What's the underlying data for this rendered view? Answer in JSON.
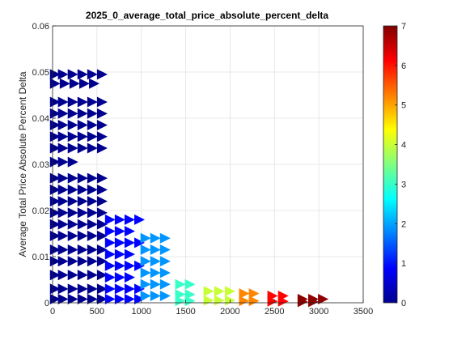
{
  "chart_data": {
    "type": "scatter",
    "title": "2025_0_average_total_price_absolute_percent_delta",
    "xlabel": "",
    "ylabel": "Average Total Price Absolute Percent Delta",
    "xlim": [
      0,
      3500
    ],
    "ylim": [
      0,
      0.06
    ],
    "xticks": [
      0,
      500,
      1000,
      1500,
      2000,
      2500,
      3000,
      3500
    ],
    "yticks": [
      0,
      0.01,
      0.02,
      0.03,
      0.04,
      0.05,
      0.06
    ],
    "ytick_labels": [
      "0",
      "0.01",
      "0.02",
      "0.03",
      "0.04",
      "0.05",
      "0.06"
    ],
    "grid": true,
    "colormap": "jet",
    "color_limits": [
      0,
      7
    ],
    "colorbar_ticks": [
      0,
      1,
      2,
      3,
      4,
      5,
      6,
      7
    ],
    "marker": "triangle",
    "description_of_color": "marker color encodes a third variable via the colorbar",
    "points": [
      {
        "x": 30,
        "y": 0.0495,
        "c": 0.1
      },
      {
        "x": 120,
        "y": 0.0495,
        "c": 0.1
      },
      {
        "x": 230,
        "y": 0.0495,
        "c": 0.1
      },
      {
        "x": 340,
        "y": 0.0495,
        "c": 0.1
      },
      {
        "x": 450,
        "y": 0.0495,
        "c": 0.1
      },
      {
        "x": 560,
        "y": 0.0495,
        "c": 0.1
      },
      {
        "x": 30,
        "y": 0.0475,
        "c": 0.1
      },
      {
        "x": 140,
        "y": 0.0475,
        "c": 0.1
      },
      {
        "x": 250,
        "y": 0.0475,
        "c": 0.1
      },
      {
        "x": 360,
        "y": 0.0475,
        "c": 0.1
      },
      {
        "x": 470,
        "y": 0.0475,
        "c": 0.1
      },
      {
        "x": 30,
        "y": 0.0435,
        "c": 0.1
      },
      {
        "x": 120,
        "y": 0.0435,
        "c": 0.1
      },
      {
        "x": 230,
        "y": 0.0435,
        "c": 0.1
      },
      {
        "x": 340,
        "y": 0.0435,
        "c": 0.1
      },
      {
        "x": 450,
        "y": 0.0435,
        "c": 0.1
      },
      {
        "x": 560,
        "y": 0.0435,
        "c": 0.1
      },
      {
        "x": 30,
        "y": 0.041,
        "c": 0.1
      },
      {
        "x": 120,
        "y": 0.041,
        "c": 0.1
      },
      {
        "x": 230,
        "y": 0.041,
        "c": 0.1
      },
      {
        "x": 340,
        "y": 0.041,
        "c": 0.1
      },
      {
        "x": 450,
        "y": 0.041,
        "c": 0.1
      },
      {
        "x": 560,
        "y": 0.041,
        "c": 0.1
      },
      {
        "x": 30,
        "y": 0.0385,
        "c": 0.1
      },
      {
        "x": 120,
        "y": 0.0385,
        "c": 0.1
      },
      {
        "x": 230,
        "y": 0.0385,
        "c": 0.1
      },
      {
        "x": 340,
        "y": 0.0385,
        "c": 0.1
      },
      {
        "x": 450,
        "y": 0.0385,
        "c": 0.1
      },
      {
        "x": 560,
        "y": 0.0385,
        "c": 0.1
      },
      {
        "x": 30,
        "y": 0.036,
        "c": 0.1
      },
      {
        "x": 120,
        "y": 0.036,
        "c": 0.1
      },
      {
        "x": 230,
        "y": 0.036,
        "c": 0.1
      },
      {
        "x": 340,
        "y": 0.036,
        "c": 0.1
      },
      {
        "x": 450,
        "y": 0.036,
        "c": 0.1
      },
      {
        "x": 560,
        "y": 0.036,
        "c": 0.1
      },
      {
        "x": 30,
        "y": 0.0335,
        "c": 0.1
      },
      {
        "x": 120,
        "y": 0.0335,
        "c": 0.1
      },
      {
        "x": 230,
        "y": 0.0335,
        "c": 0.1
      },
      {
        "x": 340,
        "y": 0.0335,
        "c": 0.1
      },
      {
        "x": 450,
        "y": 0.0335,
        "c": 0.1
      },
      {
        "x": 560,
        "y": 0.0335,
        "c": 0.1
      },
      {
        "x": 30,
        "y": 0.0305,
        "c": 0.1
      },
      {
        "x": 120,
        "y": 0.0305,
        "c": 0.1
      },
      {
        "x": 230,
        "y": 0.0305,
        "c": 0.1
      },
      {
        "x": 30,
        "y": 0.027,
        "c": 0.1
      },
      {
        "x": 120,
        "y": 0.027,
        "c": 0.1
      },
      {
        "x": 230,
        "y": 0.027,
        "c": 0.1
      },
      {
        "x": 340,
        "y": 0.027,
        "c": 0.1
      },
      {
        "x": 450,
        "y": 0.027,
        "c": 0.1
      },
      {
        "x": 560,
        "y": 0.027,
        "c": 0.1
      },
      {
        "x": 30,
        "y": 0.0245,
        "c": 0.1
      },
      {
        "x": 120,
        "y": 0.0245,
        "c": 0.1
      },
      {
        "x": 230,
        "y": 0.0245,
        "c": 0.1
      },
      {
        "x": 340,
        "y": 0.0245,
        "c": 0.1
      },
      {
        "x": 450,
        "y": 0.0245,
        "c": 0.1
      },
      {
        "x": 560,
        "y": 0.0245,
        "c": 0.1
      },
      {
        "x": 30,
        "y": 0.022,
        "c": 0.1
      },
      {
        "x": 120,
        "y": 0.022,
        "c": 0.1
      },
      {
        "x": 230,
        "y": 0.022,
        "c": 0.1
      },
      {
        "x": 340,
        "y": 0.022,
        "c": 0.1
      },
      {
        "x": 450,
        "y": 0.022,
        "c": 0.1
      },
      {
        "x": 560,
        "y": 0.022,
        "c": 0.1
      },
      {
        "x": 30,
        "y": 0.0195,
        "c": 0.1
      },
      {
        "x": 120,
        "y": 0.0195,
        "c": 0.1
      },
      {
        "x": 230,
        "y": 0.0195,
        "c": 0.1
      },
      {
        "x": 340,
        "y": 0.0195,
        "c": 0.1
      },
      {
        "x": 450,
        "y": 0.0195,
        "c": 0.1
      },
      {
        "x": 560,
        "y": 0.0195,
        "c": 0.1
      },
      {
        "x": 30,
        "y": 0.017,
        "c": 0.1
      },
      {
        "x": 120,
        "y": 0.017,
        "c": 0.1
      },
      {
        "x": 230,
        "y": 0.017,
        "c": 0.1
      },
      {
        "x": 340,
        "y": 0.017,
        "c": 0.1
      },
      {
        "x": 450,
        "y": 0.017,
        "c": 0.1
      },
      {
        "x": 560,
        "y": 0.017,
        "c": 0.1
      },
      {
        "x": 30,
        "y": 0.0145,
        "c": 0.1
      },
      {
        "x": 120,
        "y": 0.0145,
        "c": 0.1
      },
      {
        "x": 230,
        "y": 0.0145,
        "c": 0.1
      },
      {
        "x": 340,
        "y": 0.0145,
        "c": 0.1
      },
      {
        "x": 450,
        "y": 0.0145,
        "c": 0.1
      },
      {
        "x": 560,
        "y": 0.0145,
        "c": 0.1
      },
      {
        "x": 30,
        "y": 0.0115,
        "c": 0.1
      },
      {
        "x": 120,
        "y": 0.0115,
        "c": 0.1
      },
      {
        "x": 230,
        "y": 0.0115,
        "c": 0.1
      },
      {
        "x": 340,
        "y": 0.0115,
        "c": 0.1
      },
      {
        "x": 450,
        "y": 0.0115,
        "c": 0.1
      },
      {
        "x": 560,
        "y": 0.0115,
        "c": 0.1
      },
      {
        "x": 30,
        "y": 0.009,
        "c": 0.1
      },
      {
        "x": 120,
        "y": 0.009,
        "c": 0.1
      },
      {
        "x": 230,
        "y": 0.009,
        "c": 0.1
      },
      {
        "x": 340,
        "y": 0.009,
        "c": 0.1
      },
      {
        "x": 450,
        "y": 0.009,
        "c": 0.1
      },
      {
        "x": 560,
        "y": 0.009,
        "c": 0.1
      },
      {
        "x": 30,
        "y": 0.006,
        "c": 0.1
      },
      {
        "x": 120,
        "y": 0.006,
        "c": 0.1
      },
      {
        "x": 230,
        "y": 0.006,
        "c": 0.1
      },
      {
        "x": 340,
        "y": 0.006,
        "c": 0.1
      },
      {
        "x": 450,
        "y": 0.006,
        "c": 0.1
      },
      {
        "x": 560,
        "y": 0.006,
        "c": 0.1
      },
      {
        "x": 30,
        "y": 0.003,
        "c": 0.1
      },
      {
        "x": 120,
        "y": 0.003,
        "c": 0.1
      },
      {
        "x": 230,
        "y": 0.003,
        "c": 0.1
      },
      {
        "x": 340,
        "y": 0.003,
        "c": 0.1
      },
      {
        "x": 450,
        "y": 0.003,
        "c": 0.1
      },
      {
        "x": 560,
        "y": 0.003,
        "c": 0.1
      },
      {
        "x": 30,
        "y": 0.0008,
        "c": 0.1
      },
      {
        "x": 120,
        "y": 0.0008,
        "c": 0.1
      },
      {
        "x": 230,
        "y": 0.0008,
        "c": 0.1
      },
      {
        "x": 340,
        "y": 0.0008,
        "c": 0.1
      },
      {
        "x": 450,
        "y": 0.0008,
        "c": 0.1
      },
      {
        "x": 560,
        "y": 0.0008,
        "c": 0.1
      },
      {
        "x": 650,
        "y": 0.018,
        "c": 0.9
      },
      {
        "x": 760,
        "y": 0.018,
        "c": 0.9
      },
      {
        "x": 870,
        "y": 0.018,
        "c": 0.9
      },
      {
        "x": 980,
        "y": 0.018,
        "c": 0.9
      },
      {
        "x": 650,
        "y": 0.0155,
        "c": 0.9
      },
      {
        "x": 760,
        "y": 0.0155,
        "c": 0.9
      },
      {
        "x": 870,
        "y": 0.0155,
        "c": 0.9
      },
      {
        "x": 650,
        "y": 0.013,
        "c": 0.9
      },
      {
        "x": 760,
        "y": 0.013,
        "c": 0.9
      },
      {
        "x": 870,
        "y": 0.013,
        "c": 0.9
      },
      {
        "x": 980,
        "y": 0.013,
        "c": 0.9
      },
      {
        "x": 650,
        "y": 0.0105,
        "c": 0.9
      },
      {
        "x": 760,
        "y": 0.0105,
        "c": 0.9
      },
      {
        "x": 870,
        "y": 0.0105,
        "c": 0.9
      },
      {
        "x": 650,
        "y": 0.008,
        "c": 0.9
      },
      {
        "x": 760,
        "y": 0.008,
        "c": 0.9
      },
      {
        "x": 870,
        "y": 0.008,
        "c": 0.9
      },
      {
        "x": 980,
        "y": 0.008,
        "c": 0.9
      },
      {
        "x": 650,
        "y": 0.0055,
        "c": 0.9
      },
      {
        "x": 760,
        "y": 0.0055,
        "c": 0.9
      },
      {
        "x": 870,
        "y": 0.0055,
        "c": 0.9
      },
      {
        "x": 650,
        "y": 0.003,
        "c": 0.9
      },
      {
        "x": 760,
        "y": 0.003,
        "c": 0.9
      },
      {
        "x": 870,
        "y": 0.003,
        "c": 0.9
      },
      {
        "x": 980,
        "y": 0.003,
        "c": 0.9
      },
      {
        "x": 650,
        "y": 0.0008,
        "c": 0.9
      },
      {
        "x": 760,
        "y": 0.0008,
        "c": 0.9
      },
      {
        "x": 870,
        "y": 0.0008,
        "c": 0.9
      },
      {
        "x": 980,
        "y": 0.0008,
        "c": 0.9
      },
      {
        "x": 1050,
        "y": 0.014,
        "c": 1.9
      },
      {
        "x": 1160,
        "y": 0.014,
        "c": 1.9
      },
      {
        "x": 1270,
        "y": 0.014,
        "c": 1.9
      },
      {
        "x": 1050,
        "y": 0.0115,
        "c": 1.9
      },
      {
        "x": 1160,
        "y": 0.0115,
        "c": 1.9
      },
      {
        "x": 1270,
        "y": 0.0115,
        "c": 1.9
      },
      {
        "x": 1050,
        "y": 0.009,
        "c": 1.9
      },
      {
        "x": 1160,
        "y": 0.009,
        "c": 1.9
      },
      {
        "x": 1270,
        "y": 0.009,
        "c": 1.9
      },
      {
        "x": 1050,
        "y": 0.0065,
        "c": 1.9
      },
      {
        "x": 1160,
        "y": 0.0065,
        "c": 1.9
      },
      {
        "x": 1270,
        "y": 0.0065,
        "c": 1.9
      },
      {
        "x": 1050,
        "y": 0.004,
        "c": 1.9
      },
      {
        "x": 1160,
        "y": 0.004,
        "c": 1.9
      },
      {
        "x": 1270,
        "y": 0.004,
        "c": 1.9
      },
      {
        "x": 1050,
        "y": 0.0015,
        "c": 1.9
      },
      {
        "x": 1160,
        "y": 0.0015,
        "c": 1.9
      },
      {
        "x": 1270,
        "y": 0.0015,
        "c": 1.9
      },
      {
        "x": 1440,
        "y": 0.004,
        "c": 3.0
      },
      {
        "x": 1550,
        "y": 0.004,
        "c": 3.0
      },
      {
        "x": 1440,
        "y": 0.0018,
        "c": 3.0
      },
      {
        "x": 1550,
        "y": 0.0018,
        "c": 3.0
      },
      {
        "x": 1440,
        "y": 0.0004,
        "c": 3.0
      },
      {
        "x": 1550,
        "y": 0.0004,
        "c": 3.0
      },
      {
        "x": 1760,
        "y": 0.0025,
        "c": 4.0
      },
      {
        "x": 1880,
        "y": 0.0025,
        "c": 4.0
      },
      {
        "x": 2000,
        "y": 0.0025,
        "c": 4.0
      },
      {
        "x": 1760,
        "y": 0.0005,
        "c": 4.0
      },
      {
        "x": 1880,
        "y": 0.0005,
        "c": 4.0
      },
      {
        "x": 2000,
        "y": 0.0005,
        "c": 4.0
      },
      {
        "x": 2160,
        "y": 0.002,
        "c": 5.2
      },
      {
        "x": 2270,
        "y": 0.002,
        "c": 5.2
      },
      {
        "x": 2160,
        "y": 0.0004,
        "c": 5.2
      },
      {
        "x": 2270,
        "y": 0.0004,
        "c": 5.2
      },
      {
        "x": 2480,
        "y": 0.0015,
        "c": 6.1
      },
      {
        "x": 2600,
        "y": 0.0015,
        "c": 6.1
      },
      {
        "x": 2480,
        "y": 0.0003,
        "c": 6.1
      },
      {
        "x": 2600,
        "y": 0.0003,
        "c": 6.1
      },
      {
        "x": 2820,
        "y": 0.0008,
        "c": 6.9
      },
      {
        "x": 2940,
        "y": 0.0008,
        "c": 6.9
      },
      {
        "x": 3050,
        "y": 0.0008,
        "c": 6.9
      },
      {
        "x": 2820,
        "y": 0.0002,
        "c": 6.9
      },
      {
        "x": 2940,
        "y": 0.0002,
        "c": 6.9
      }
    ]
  }
}
